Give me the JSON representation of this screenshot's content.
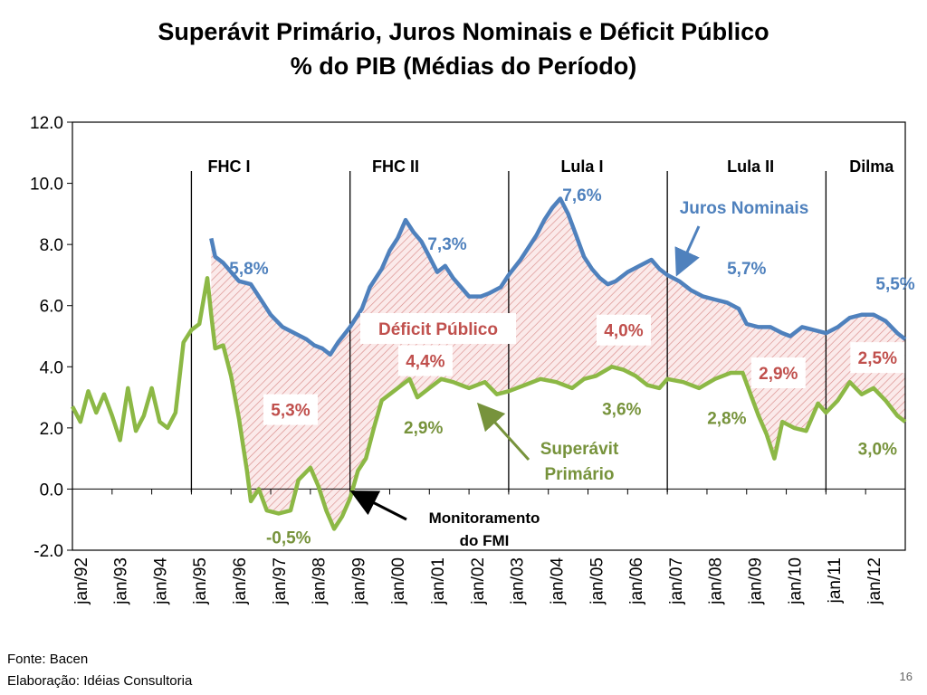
{
  "title": "Superávit Primário, Juros Nominais e Déficit Público",
  "subtitle": "% do PIB (Médias do Período)",
  "footer": {
    "source": "Fonte: Bacen",
    "author": "Elaboração: Idéias Consultoria",
    "page": "16"
  },
  "colors": {
    "juros": "#4f81bd",
    "superavit": "#8cb845",
    "deficit": "#c0504d"
  },
  "chart_data": {
    "type": "line",
    "ylim": [
      -2,
      12
    ],
    "yticks": [
      "12.0",
      "10.0",
      "8.0",
      "6.0",
      "4.0",
      "2.0",
      "0.0",
      "-2.0"
    ],
    "x_labels": [
      "jan/92",
      "jan/93",
      "jan/94",
      "jan/95",
      "jan/96",
      "jan/97",
      "jan/98",
      "jan/99",
      "jan/00",
      "jan/01",
      "jan/02",
      "jan/03",
      "jan/04",
      "jan/05",
      "jan/06",
      "jan/07",
      "jan/08",
      "jan/09",
      "jan/10",
      "jan/11",
      "jan/12"
    ],
    "periods": [
      {
        "name": "FHC I",
        "start": 1995.0
      },
      {
        "name": "FHC II",
        "start": 1999.0
      },
      {
        "name": "Lula I",
        "start": 2003.0
      },
      {
        "name": "Lula II",
        "start": 2007.0
      },
      {
        "name": "Dilma",
        "start": 2011.0
      }
    ],
    "series": [
      {
        "name": "Juros Nominais",
        "points": [
          [
            1995.5,
            8.2
          ],
          [
            1995.6,
            7.6
          ],
          [
            1995.8,
            7.4
          ],
          [
            1996.0,
            7.1
          ],
          [
            1996.2,
            6.8
          ],
          [
            1996.5,
            6.7
          ],
          [
            1996.8,
            6.1
          ],
          [
            1997.0,
            5.7
          ],
          [
            1997.3,
            5.3
          ],
          [
            1997.6,
            5.1
          ],
          [
            1997.9,
            4.9
          ],
          [
            1998.1,
            4.7
          ],
          [
            1998.3,
            4.6
          ],
          [
            1998.5,
            4.4
          ],
          [
            1998.7,
            4.8
          ],
          [
            1999.0,
            5.3
          ],
          [
            1999.3,
            5.9
          ],
          [
            1999.5,
            6.6
          ],
          [
            1999.8,
            7.2
          ],
          [
            2000.0,
            7.8
          ],
          [
            2000.2,
            8.2
          ],
          [
            2000.4,
            8.8
          ],
          [
            2000.6,
            8.4
          ],
          [
            2000.8,
            8.1
          ],
          [
            2001.0,
            7.6
          ],
          [
            2001.2,
            7.1
          ],
          [
            2001.4,
            7.3
          ],
          [
            2001.6,
            6.9
          ],
          [
            2001.8,
            6.6
          ],
          [
            2002.0,
            6.3
          ],
          [
            2002.3,
            6.3
          ],
          [
            2002.5,
            6.4
          ],
          [
            2002.8,
            6.6
          ],
          [
            2003.0,
            7.0
          ],
          [
            2003.3,
            7.5
          ],
          [
            2003.5,
            7.9
          ],
          [
            2003.7,
            8.3
          ],
          [
            2003.9,
            8.8
          ],
          [
            2004.1,
            9.2
          ],
          [
            2004.3,
            9.5
          ],
          [
            2004.5,
            9.0
          ],
          [
            2004.7,
            8.3
          ],
          [
            2004.9,
            7.6
          ],
          [
            2005.1,
            7.2
          ],
          [
            2005.3,
            6.9
          ],
          [
            2005.5,
            6.7
          ],
          [
            2005.7,
            6.8
          ],
          [
            2006.0,
            7.1
          ],
          [
            2006.3,
            7.3
          ],
          [
            2006.6,
            7.5
          ],
          [
            2006.8,
            7.2
          ],
          [
            2007.0,
            7.0
          ],
          [
            2007.3,
            6.8
          ],
          [
            2007.6,
            6.5
          ],
          [
            2007.9,
            6.3
          ],
          [
            2008.2,
            6.2
          ],
          [
            2008.5,
            6.1
          ],
          [
            2008.8,
            5.9
          ],
          [
            2009.0,
            5.4
          ],
          [
            2009.3,
            5.3
          ],
          [
            2009.6,
            5.3
          ],
          [
            2009.9,
            5.1
          ],
          [
            2010.1,
            5.0
          ],
          [
            2010.4,
            5.3
          ],
          [
            2010.7,
            5.2
          ],
          [
            2011.0,
            5.1
          ],
          [
            2011.3,
            5.3
          ],
          [
            2011.6,
            5.6
          ],
          [
            2011.9,
            5.7
          ],
          [
            2012.2,
            5.7
          ],
          [
            2012.5,
            5.5
          ],
          [
            2012.8,
            5.1
          ],
          [
            2013.0,
            4.9
          ]
        ]
      },
      {
        "name": "Superávit Primário",
        "points": [
          [
            1992.0,
            2.7
          ],
          [
            1992.2,
            2.2
          ],
          [
            1992.4,
            3.2
          ],
          [
            1992.6,
            2.5
          ],
          [
            1992.8,
            3.1
          ],
          [
            1993.0,
            2.4
          ],
          [
            1993.2,
            1.6
          ],
          [
            1993.4,
            3.3
          ],
          [
            1993.6,
            1.9
          ],
          [
            1993.8,
            2.4
          ],
          [
            1994.0,
            3.3
          ],
          [
            1994.2,
            2.2
          ],
          [
            1994.4,
            2.0
          ],
          [
            1994.6,
            2.5
          ],
          [
            1994.8,
            4.8
          ],
          [
            1995.0,
            5.2
          ],
          [
            1995.2,
            5.4
          ],
          [
            1995.4,
            6.9
          ],
          [
            1995.5,
            5.7
          ],
          [
            1995.6,
            4.6
          ],
          [
            1995.8,
            4.7
          ],
          [
            1996.0,
            3.7
          ],
          [
            1996.2,
            2.3
          ],
          [
            1996.4,
            0.6
          ],
          [
            1996.5,
            -0.4
          ],
          [
            1996.7,
            0.0
          ],
          [
            1996.9,
            -0.7
          ],
          [
            1997.2,
            -0.8
          ],
          [
            1997.5,
            -0.7
          ],
          [
            1997.7,
            0.3
          ],
          [
            1998.0,
            0.7
          ],
          [
            1998.2,
            0.1
          ],
          [
            1998.4,
            -0.7
          ],
          [
            1998.6,
            -1.3
          ],
          [
            1998.8,
            -0.9
          ],
          [
            1999.0,
            -0.3
          ],
          [
            1999.2,
            0.6
          ],
          [
            1999.4,
            1.0
          ],
          [
            1999.6,
            2.0
          ],
          [
            1999.8,
            2.9
          ],
          [
            2000.0,
            3.1
          ],
          [
            2000.3,
            3.4
          ],
          [
            2000.5,
            3.6
          ],
          [
            2000.7,
            3.0
          ],
          [
            2001.0,
            3.3
          ],
          [
            2001.3,
            3.6
          ],
          [
            2001.6,
            3.5
          ],
          [
            2002.0,
            3.3
          ],
          [
            2002.4,
            3.5
          ],
          [
            2002.7,
            3.1
          ],
          [
            2003.0,
            3.2
          ],
          [
            2003.4,
            3.4
          ],
          [
            2003.8,
            3.6
          ],
          [
            2004.2,
            3.5
          ],
          [
            2004.6,
            3.3
          ],
          [
            2004.9,
            3.6
          ],
          [
            2005.2,
            3.7
          ],
          [
            2005.6,
            4.0
          ],
          [
            2005.9,
            3.9
          ],
          [
            2006.2,
            3.7
          ],
          [
            2006.5,
            3.4
          ],
          [
            2006.8,
            3.3
          ],
          [
            2007.0,
            3.6
          ],
          [
            2007.4,
            3.5
          ],
          [
            2007.8,
            3.3
          ],
          [
            2008.2,
            3.6
          ],
          [
            2008.6,
            3.8
          ],
          [
            2008.9,
            3.8
          ],
          [
            2009.1,
            3.1
          ],
          [
            2009.3,
            2.4
          ],
          [
            2009.5,
            1.8
          ],
          [
            2009.7,
            1.0
          ],
          [
            2009.9,
            2.2
          ],
          [
            2010.2,
            2.0
          ],
          [
            2010.5,
            1.9
          ],
          [
            2010.8,
            2.8
          ],
          [
            2011.0,
            2.5
          ],
          [
            2011.3,
            2.9
          ],
          [
            2011.6,
            3.5
          ],
          [
            2011.9,
            3.1
          ],
          [
            2012.2,
            3.3
          ],
          [
            2012.5,
            2.9
          ],
          [
            2012.8,
            2.4
          ],
          [
            2013.0,
            2.2
          ]
        ]
      }
    ],
    "annotations": {
      "juros_labels": [
        {
          "text": "5,8%",
          "x": 1996.45,
          "y": 7.2
        },
        {
          "text": "7,3%",
          "x": 2001.45,
          "y": 8.0
        },
        {
          "text": "7,6%",
          "x": 2004.85,
          "y": 9.6
        },
        {
          "text": "5,7%",
          "x": 2009.0,
          "y": 7.2
        },
        {
          "text": "5,5%",
          "x": 2012.75,
          "y": 6.7
        }
      ],
      "superavit_labels": [
        {
          "text": "-0,5%",
          "x": 1997.45,
          "y": -1.6
        },
        {
          "text": "2,9%",
          "x": 2000.85,
          "y": 2.0
        },
        {
          "text": "3,6%",
          "x": 2005.85,
          "y": 2.6
        },
        {
          "text": "2,8%",
          "x": 2008.5,
          "y": 2.3
        },
        {
          "text": "3,0%",
          "x": 2012.3,
          "y": 1.3
        }
      ],
      "deficit_labels": [
        {
          "text": "5,3%",
          "x": 1997.5,
          "y": 2.6
        },
        {
          "text": "4,4%",
          "x": 2000.9,
          "y": 4.2
        },
        {
          "text": "4,0%",
          "x": 2005.9,
          "y": 5.2
        },
        {
          "text": "2,9%",
          "x": 2009.8,
          "y": 3.8
        },
        {
          "text": "2,5%",
          "x": 2012.3,
          "y": 4.3
        }
      ],
      "deficit_title": "Déficit Público",
      "juros_name": "Juros Nominais",
      "superavit_name_line1": "Superávit",
      "superavit_name_line2": "Primário",
      "fmi_line1": "Monitoramento",
      "fmi_line2": "do FMI"
    }
  }
}
